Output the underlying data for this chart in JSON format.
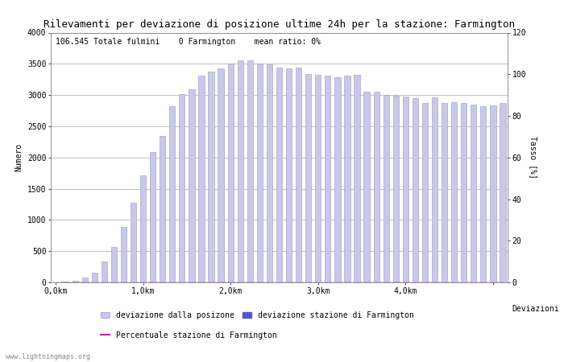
{
  "title": "Rilevamenti per deviazione di posizione ultime 24h per la stazione: Farmington",
  "subtitle": "106.545 Totale fulmini    0 Farmington    mean ratio: 0%",
  "xlabel": "Deviazioni",
  "ylabel_left": "Numero",
  "ylabel_right": "Tasso [%]",
  "xlim": [
    -0.5,
    46.5
  ],
  "ylim_left": [
    0,
    4000
  ],
  "ylim_right": [
    0,
    120
  ],
  "xtick_positions": [
    0,
    9,
    18,
    27,
    36,
    45
  ],
  "xtick_labels_shown": [
    "0,0km",
    "1,0km",
    "2,0km",
    "3,0km",
    "4,0km",
    ""
  ],
  "yticks_left": [
    0,
    500,
    1000,
    1500,
    2000,
    2500,
    3000,
    3500,
    4000
  ],
  "yticks_right": [
    0,
    20,
    40,
    60,
    80,
    100,
    120
  ],
  "bar_values": [
    5,
    10,
    20,
    80,
    150,
    330,
    570,
    890,
    1270,
    1710,
    2090,
    2350,
    2820,
    3010,
    3090,
    3310,
    3380,
    3430,
    3505,
    3555,
    3555,
    3500,
    3490,
    3440,
    3430,
    3440,
    3340,
    3325,
    3310,
    3290,
    3310,
    3320,
    3050,
    3055,
    3005,
    2995,
    2970,
    2955,
    2870,
    2960,
    2870,
    2890,
    2870,
    2850,
    2825,
    2830,
    2870
  ],
  "farmington_values": [
    0,
    0,
    0,
    0,
    0,
    0,
    0,
    0,
    0,
    0,
    0,
    0,
    0,
    0,
    0,
    0,
    0,
    0,
    0,
    0,
    0,
    0,
    0,
    0,
    0,
    0,
    0,
    0,
    0,
    0,
    0,
    0,
    0,
    0,
    0,
    0,
    0,
    0,
    0,
    0,
    0,
    0,
    0,
    0,
    0,
    0,
    0
  ],
  "ratio_values": [
    0,
    0,
    0,
    0,
    0,
    0,
    0,
    0,
    0,
    0,
    0,
    0,
    0,
    0,
    0,
    0,
    0,
    0,
    0,
    0,
    0,
    0,
    0,
    0,
    0,
    0,
    0,
    0,
    0,
    0,
    0,
    0,
    0,
    0,
    0,
    0,
    0,
    0,
    0,
    0,
    0,
    0,
    0,
    0,
    0,
    0,
    0
  ],
  "bar_color": "#c8c8e8",
  "bar_edge_color": "#9898c8",
  "farmington_color": "#5555cc",
  "ratio_color": "#cc00cc",
  "bg_color": "#ffffff",
  "grid_color": "#aaaaaa",
  "title_fontsize": 9,
  "subtitle_fontsize": 7,
  "axis_fontsize": 7,
  "tick_fontsize": 7,
  "legend_fontsize": 7,
  "watermark": "www.lightningmaps.org",
  "watermark_fontsize": 6,
  "legend_entries": [
    "deviazione dalla posizone",
    "deviazione stazione di Farmington",
    "Percentuale stazione di Farmington"
  ]
}
